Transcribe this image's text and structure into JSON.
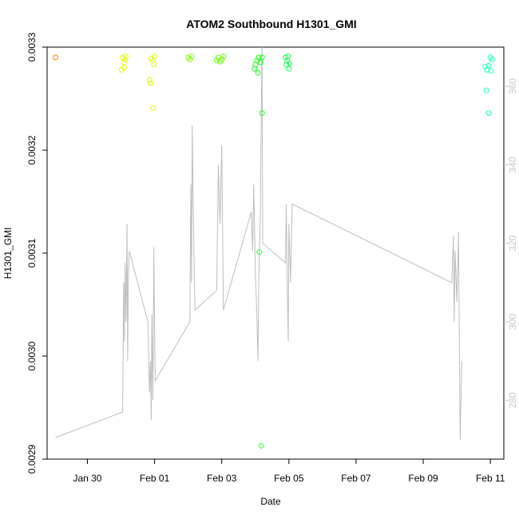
{
  "chart_data": {
    "type": "scatter",
    "title": "ATOM2 Southbound H1301_GMI",
    "xlabel": "Date",
    "ylabel": "H1301_GMI",
    "x_ticks": [
      "Jan 30",
      "Feb 01",
      "Feb 03",
      "Feb 05",
      "Feb 07",
      "Feb 09",
      "Feb 11"
    ],
    "x_tick_days": [
      0,
      2,
      4,
      6,
      8,
      10,
      12
    ],
    "xlim_days": [
      -1.2,
      12.4
    ],
    "y_ticks": [
      "0.0029",
      "0.0030",
      "0.0031",
      "0.0032",
      "0.0033"
    ],
    "ylim": [
      0.0029,
      0.0033
    ],
    "y2_ticks": [
      "280",
      "300",
      "320",
      "340",
      "360"
    ],
    "y2lim": [
      265,
      370
    ],
    "colors": {
      "line": "#bdbdbd",
      "axis2": "#c8c8c8",
      "frame": "#000000"
    },
    "points": [
      {
        "day": -0.95,
        "v": 0.00329,
        "color": "#ff7f00"
      },
      {
        "day": 1.05,
        "v": 0.00329,
        "color": "#e5ff00"
      },
      {
        "day": 1.08,
        "v": 0.003285,
        "color": "#e5ff00"
      },
      {
        "day": 1.12,
        "v": 0.003288,
        "color": "#e5ff00"
      },
      {
        "day": 1.02,
        "v": 0.003278,
        "color": "#e5ff00"
      },
      {
        "day": 1.1,
        "v": 0.00328,
        "color": "#e5ff00"
      },
      {
        "day": 1.14,
        "v": 0.003291,
        "color": "#e5ff00"
      },
      {
        "day": 1.9,
        "v": 0.003289,
        "color": "#d4ff00"
      },
      {
        "day": 1.95,
        "v": 0.003287,
        "color": "#d4ff00"
      },
      {
        "day": 1.98,
        "v": 0.003283,
        "color": "#d4ff00"
      },
      {
        "day": 1.85,
        "v": 0.003268,
        "color": "#d4ff00"
      },
      {
        "day": 1.88,
        "v": 0.003265,
        "color": "#d4ff00"
      },
      {
        "day": 1.96,
        "v": 0.003241,
        "color": "#d4ff00"
      },
      {
        "day": 2.0,
        "v": 0.003291,
        "color": "#d4ff00"
      },
      {
        "day": 3.0,
        "v": 0.00329,
        "color": "#7fff00"
      },
      {
        "day": 3.05,
        "v": 0.003288,
        "color": "#7fff00"
      },
      {
        "day": 3.1,
        "v": 0.003291,
        "color": "#7fff00"
      },
      {
        "day": 3.9,
        "v": 0.00329,
        "color": "#66ff00"
      },
      {
        "day": 3.95,
        "v": 0.003286,
        "color": "#66ff00"
      },
      {
        "day": 4.0,
        "v": 0.003288,
        "color": "#66ff00"
      },
      {
        "day": 3.85,
        "v": 0.003287,
        "color": "#66ff00"
      },
      {
        "day": 4.05,
        "v": 0.003291,
        "color": "#66ff00"
      },
      {
        "day": 5.0,
        "v": 0.003283,
        "color": "#1aff1a"
      },
      {
        "day": 5.05,
        "v": 0.003287,
        "color": "#1aff1a"
      },
      {
        "day": 4.98,
        "v": 0.003279,
        "color": "#1aff1a"
      },
      {
        "day": 5.1,
        "v": 0.00329,
        "color": "#1aff1a"
      },
      {
        "day": 5.08,
        "v": 0.003275,
        "color": "#1aff1a"
      },
      {
        "day": 5.2,
        "v": 0.00329,
        "color": "#1aff1a"
      },
      {
        "day": 5.15,
        "v": 0.003285,
        "color": "#1aff1a"
      },
      {
        "day": 5.2,
        "v": 0.003236,
        "color": "#2aff2a"
      },
      {
        "day": 5.12,
        "v": 0.003101,
        "color": "#2aff2a"
      },
      {
        "day": 5.18,
        "v": 0.002913,
        "color": "#2aff2a"
      },
      {
        "day": 5.9,
        "v": 0.00329,
        "color": "#1aff5a"
      },
      {
        "day": 5.95,
        "v": 0.003287,
        "color": "#1aff5a"
      },
      {
        "day": 5.92,
        "v": 0.003283,
        "color": "#1aff5a"
      },
      {
        "day": 6.0,
        "v": 0.003279,
        "color": "#1aff5a"
      },
      {
        "day": 5.97,
        "v": 0.003291,
        "color": "#1aff5a"
      },
      {
        "day": 6.02,
        "v": 0.003284,
        "color": "#1aff5a"
      },
      {
        "day": 11.85,
        "v": 0.003281,
        "color": "#1affb0"
      },
      {
        "day": 11.9,
        "v": 0.003278,
        "color": "#1affb0"
      },
      {
        "day": 11.95,
        "v": 0.003282,
        "color": "#1affb0"
      },
      {
        "day": 12.0,
        "v": 0.00329,
        "color": "#1affb0"
      },
      {
        "day": 12.02,
        "v": 0.003277,
        "color": "#1affb0"
      },
      {
        "day": 12.05,
        "v": 0.003288,
        "color": "#1affb0"
      },
      {
        "day": 11.88,
        "v": 0.003258,
        "color": "#1affb0"
      },
      {
        "day": 11.95,
        "v": 0.003236,
        "color": "#1affb0"
      }
    ],
    "line_series": [
      [
        -0.95,
        270.5
      ],
      [
        1.05,
        277
      ],
      [
        1.08,
        310
      ],
      [
        1.1,
        295
      ],
      [
        1.12,
        315
      ],
      [
        1.15,
        300
      ],
      [
        1.18,
        325
      ],
      [
        1.2,
        290
      ],
      [
        1.22,
        312
      ],
      [
        1.25,
        318
      ],
      [
        1.8,
        300
      ],
      [
        1.85,
        282
      ],
      [
        1.88,
        290
      ],
      [
        1.9,
        275
      ],
      [
        1.92,
        302
      ],
      [
        1.95,
        280
      ],
      [
        1.98,
        319
      ],
      [
        2.0,
        298
      ],
      [
        2.02,
        285
      ],
      [
        3.05,
        300
      ],
      [
        3.08,
        335
      ],
      [
        3.1,
        310
      ],
      [
        3.12,
        350
      ],
      [
        3.15,
        329
      ],
      [
        3.2,
        303
      ],
      [
        3.85,
        308
      ],
      [
        3.9,
        340
      ],
      [
        3.95,
        325
      ],
      [
        4.0,
        345
      ],
      [
        4.05,
        303
      ],
      [
        4.88,
        328
      ],
      [
        4.92,
        318
      ],
      [
        4.95,
        335
      ],
      [
        5.0,
        313
      ],
      [
        5.05,
        300
      ],
      [
        5.08,
        290
      ],
      [
        5.1,
        310
      ],
      [
        5.15,
        328
      ],
      [
        5.18,
        355
      ],
      [
        5.2,
        370
      ],
      [
        5.22,
        320
      ],
      [
        5.9,
        315
      ],
      [
        5.92,
        330
      ],
      [
        5.95,
        310
      ],
      [
        5.98,
        295
      ],
      [
        6.0,
        325
      ],
      [
        6.05,
        310
      ],
      [
        6.1,
        330
      ],
      [
        10.85,
        310
      ],
      [
        10.9,
        322
      ],
      [
        10.92,
        300
      ],
      [
        10.95,
        318
      ],
      [
        11.0,
        305
      ],
      [
        11.05,
        323
      ],
      [
        11.1,
        270
      ],
      [
        11.15,
        290
      ]
    ]
  }
}
